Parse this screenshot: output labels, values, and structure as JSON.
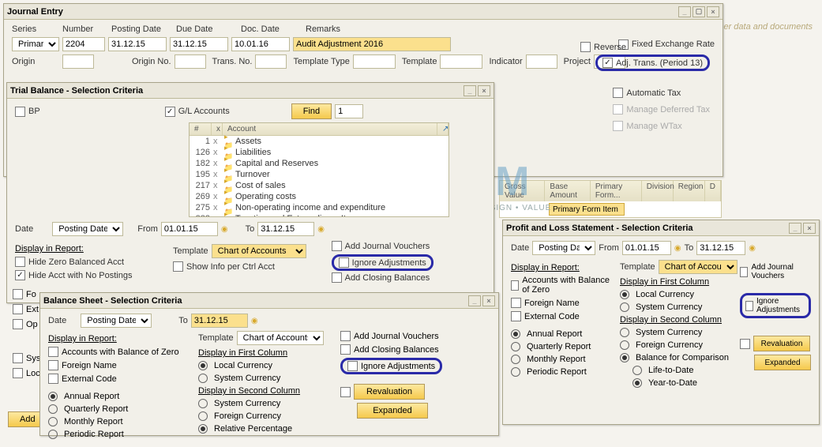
{
  "hint": "er data and documents",
  "journal": {
    "title": "Journal Entry",
    "labels": {
      "series": "Series",
      "number": "Number",
      "posting": "Posting Date",
      "due": "Due Date",
      "doc": "Doc. Date",
      "remarks": "Remarks",
      "origin": "Origin",
      "originNo": "Origin No.",
      "transNo": "Trans. No.",
      "tplType": "Template Type",
      "tpl": "Template",
      "indicator": "Indicator",
      "project": "Project"
    },
    "values": {
      "series": "Primary",
      "number": "2204",
      "posting": "31.12.15",
      "due": "31.12.15",
      "doc": "10.01.16",
      "remarks": "Audit Adjustment 2016"
    },
    "checks": {
      "fixed": "Fixed Exchange Rate",
      "reverse": "Reverse",
      "adj": "Adj. Trans. (Period 13)",
      "auto": "Automatic Tax",
      "deferred": "Manage Deferred Tax",
      "wtax": "Manage WTax"
    }
  },
  "trial": {
    "title": "Trial Balance - Selection Criteria",
    "bp": "BP",
    "gl": "G/L Accounts",
    "find": "Find",
    "findVal": "1",
    "tree_hdr": {
      "n": "#",
      "x": "x",
      "acct": "Account"
    },
    "tree_rows": [
      {
        "n": "1",
        "name": "Assets"
      },
      {
        "n": "126",
        "name": "Liabilities"
      },
      {
        "n": "182",
        "name": "Capital and Reserves"
      },
      {
        "n": "195",
        "name": "Turnover"
      },
      {
        "n": "217",
        "name": "Cost of sales"
      },
      {
        "n": "269",
        "name": "Operating costs"
      },
      {
        "n": "275",
        "name": "Non-operating income and expenditure"
      },
      {
        "n": "383",
        "name": "Taxation and Extraordinary Items"
      }
    ],
    "date": "Date",
    "posting": "Posting Date",
    "from": "From",
    "fromVal": "01.01.15",
    "to": "To",
    "toVal": "31.12.15",
    "display": "Display in Report:",
    "hideZero": "Hide Zero Balanced Acct",
    "hideNoPost": "Hide Acct with No Postings",
    "template": "Template",
    "templateVal": "Chart of Accounts",
    "showInfo": "Show Info per Ctrl Acct",
    "addJV": "Add Journal Vouchers",
    "ignore": "Ignore Adjustments",
    "addClosing": "Add Closing Balances",
    "fo": "Fo",
    "ext": "Ext",
    "op": "Op",
    "sys": "Sys",
    "loc": "Loc",
    "add": "Add"
  },
  "balance": {
    "title": "Balance Sheet - Selection Criteria",
    "date": "Date",
    "posting": "Posting Date",
    "to": "To",
    "toVal": "31.12.15",
    "display": "Display in Report:",
    "template": "Template",
    "templateVal": "Chart of Accounts",
    "zero": "Accounts with Balance of Zero",
    "foreign": "Foreign Name",
    "ext": "External Code",
    "annual": "Annual Report",
    "quarterly": "Quarterly Report",
    "monthly": "Monthly Report",
    "periodic": "Periodic Report",
    "colFirst": "Display in First Column",
    "colSecond": "Display in Second Column",
    "local": "Local Currency",
    "system": "System Currency",
    "foreignCur": "Foreign Currency",
    "relPct": "Relative Percentage",
    "addJV": "Add Journal Vouchers",
    "addClosing": "Add Closing Balances",
    "ignore": "Ignore Adjustments",
    "reval": "Revaluation",
    "expanded": "Expanded"
  },
  "pl": {
    "title": "Profit and Loss Statement - Selection Criteria",
    "date": "Date",
    "posting": "Posting Date",
    "from": "From",
    "fromVal": "01.01.15",
    "to": "To",
    "toVal": "31.12.15",
    "display": "Display in Report:",
    "template": "Template",
    "templateVal": "Chart of Accounts",
    "zero": "Accounts with Balance of Zero",
    "foreign": "Foreign Name",
    "ext": "External Code",
    "annual": "Annual Report",
    "quarterly": "Quarterly Report",
    "monthly": "Monthly Report",
    "periodic": "Periodic Report",
    "colFirst": "Display in First Column",
    "colSecond": "Display in Second Column",
    "local": "Local Currency",
    "system": "System Currency",
    "foreignCur": "Foreign Currency",
    "balComp": "Balance for Comparison",
    "life": "Life-to-Date",
    "year": "Year-to-Date",
    "addJV": "Add Journal Vouchers",
    "ignore": "Ignore Adjustments",
    "reval": "Revaluation",
    "expanded": "Expanded"
  },
  "gridcols": [
    "Gross Value",
    "Base Amount",
    "Primary Form...",
    "Division",
    "Region",
    "D"
  ],
  "primaryFormItem": "Primary Form Item",
  "watermark": "STEM",
  "watermark2": "INNOVATION • DESIGN • VALUE"
}
